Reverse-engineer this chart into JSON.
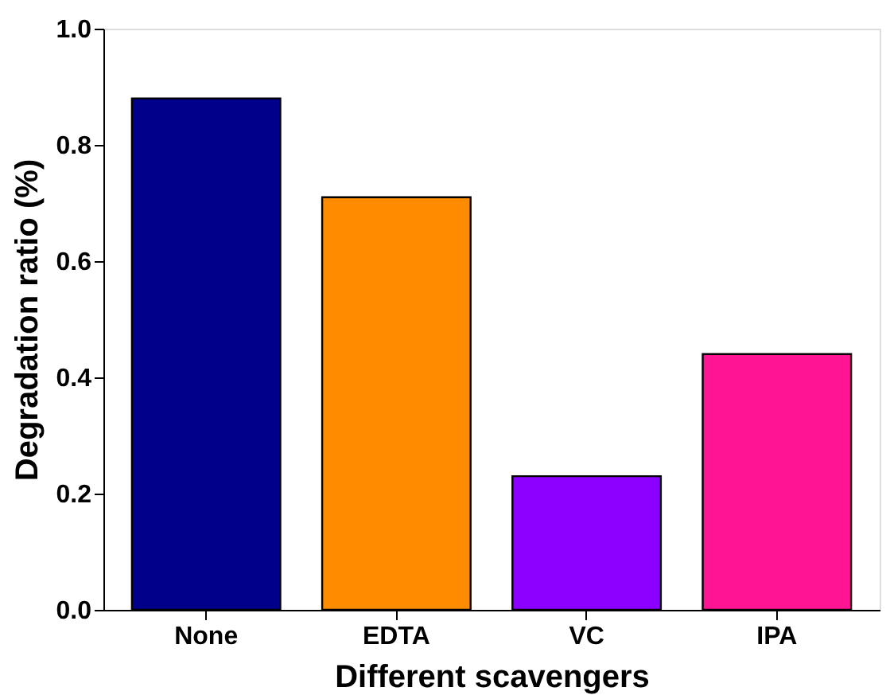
{
  "chart_data": {
    "type": "bar",
    "xlabel": "Different scavengers",
    "ylabel": "Degradation ratio (%)",
    "categories": [
      "None",
      "EDTA",
      "VC",
      "IPA"
    ],
    "values": [
      0.88,
      0.71,
      0.23,
      0.44
    ],
    "colors": [
      "#00008b",
      "#ff8c00",
      "#8b00ff",
      "#ff1493"
    ],
    "ylim": [
      0,
      1.0
    ],
    "yticks": [
      {
        "value": 0,
        "label": "0.0"
      },
      0.2,
      0.4,
      0.6,
      0.8,
      {
        "value": 1.0,
        "label": "1.0"
      }
    ],
    "grid": false,
    "legend": false
  }
}
